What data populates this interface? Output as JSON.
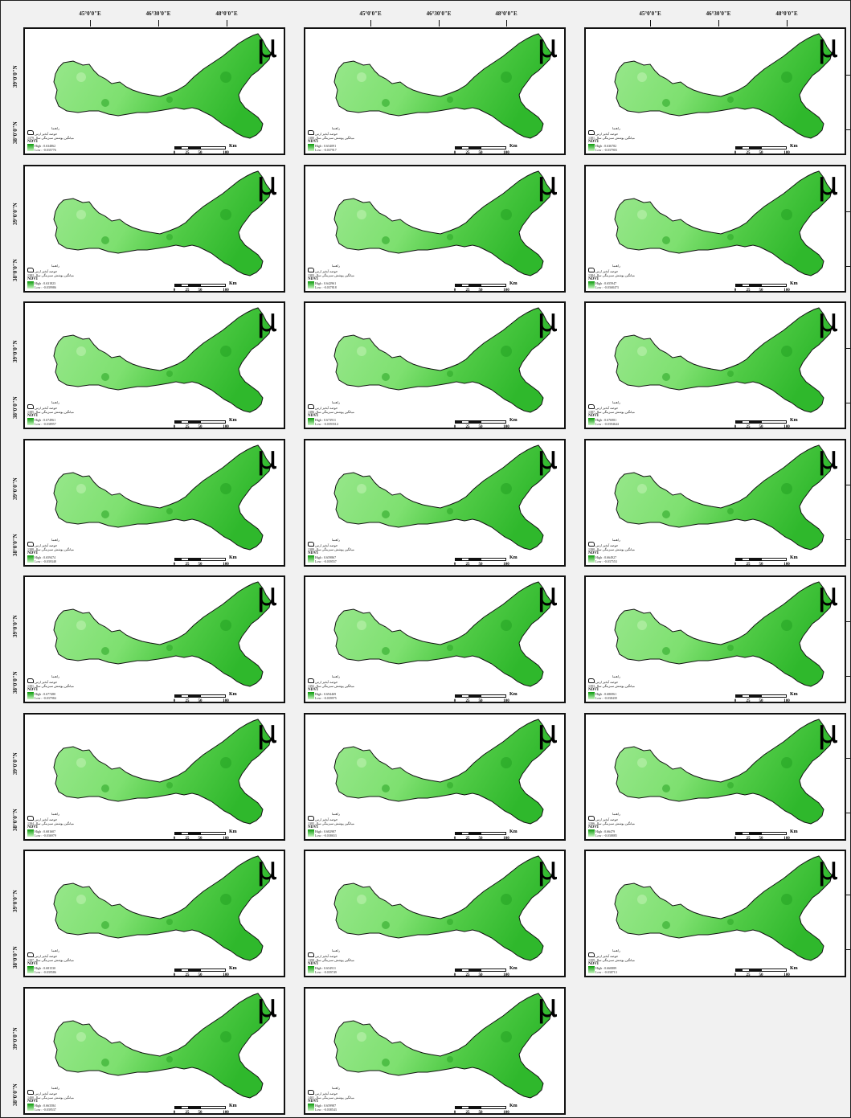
{
  "top_lon_labels": [
    "45°0'0\"E",
    "46°30'0\"E",
    "48°0'0\"E"
  ],
  "bottom_lon_labels": [
    "45°0'0\"E",
    "46°30'0\"E",
    "48°0'0\"E"
  ],
  "lat_labels": [
    "39°0'0\"N",
    "38°0'0\"N"
  ],
  "north_symbol": "μ",
  "legend": {
    "basin_label": "حوضه آبخیز ارس",
    "caption_prefix": "میانگین پوشش سبزینگی سال",
    "index_label": "NDVI",
    "high_prefix": "High : ",
    "low_prefix": "Low : ",
    "region_label": "راهنما"
  },
  "scale": {
    "unit": "Km",
    "labels": [
      "0",
      "25",
      "50",
      "100"
    ]
  },
  "colors": {
    "vegetation_high": "#0a9a0a",
    "vegetation_low": "#c8f5c0"
  },
  "panels": [
    {
      "year": "1379",
      "high": "0.634862",
      "low": "-0.035776"
    },
    {
      "year": "1380",
      "high": "0.654091",
      "low": "-0.037917"
    },
    {
      "year": "1381",
      "high": "0.636782",
      "low": "-0.037903"
    },
    {
      "year": "1382",
      "high": "0.631823",
      "low": "-0.039986"
    },
    {
      "year": "1383",
      "high": "0.642961",
      "low": "-0.037818"
    },
    {
      "year": "1384",
      "high": "0.655947",
      "low": "-0.0368473"
    },
    {
      "year": "1385",
      "high": "0.674961",
      "low": "-0.038957"
    },
    {
      "year": "1386",
      "high": "0.673911",
      "low": "-0.0393514"
    },
    {
      "year": "1387",
      "high": "0.676981",
      "low": "-0.0394644"
    },
    {
      "year": "1388",
      "high": "0.659474",
      "low": "-0.039348"
    },
    {
      "year": "1389",
      "high": "0.659867",
      "low": "-0.039557"
    },
    {
      "year": "1390",
      "high": "0.664927",
      "low": "-0.037553"
    },
    {
      "year": "1391",
      "high": "0.677480",
      "low": "-0.037984"
    },
    {
      "year": "1392",
      "high": "0.694469",
      "low": "-0.039975"
    },
    {
      "year": "1393",
      "high": "0.686961",
      "low": "-0.038439"
    },
    {
      "year": "1394",
      "high": "0.681607",
      "low": "-0.036979"
    },
    {
      "year": "1395",
      "high": "0.682987",
      "low": "-0.038653"
    },
    {
      "year": "1396",
      "high": "0.66479",
      "low": "-0.038885"
    },
    {
      "year": "1397",
      "high": "0.681530",
      "low": "-0.039586"
    },
    {
      "year": "1398",
      "high": "0.654911",
      "low": "-0.039749"
    },
    {
      "year": "1399",
      "high": "0.660889",
      "low": "-0.038713"
    },
    {
      "year": "1400",
      "high": "0.663584",
      "low": "-0.039537"
    },
    {
      "year": "1401",
      "high": "0.659987",
      "low": "-0.038543"
    }
  ]
}
